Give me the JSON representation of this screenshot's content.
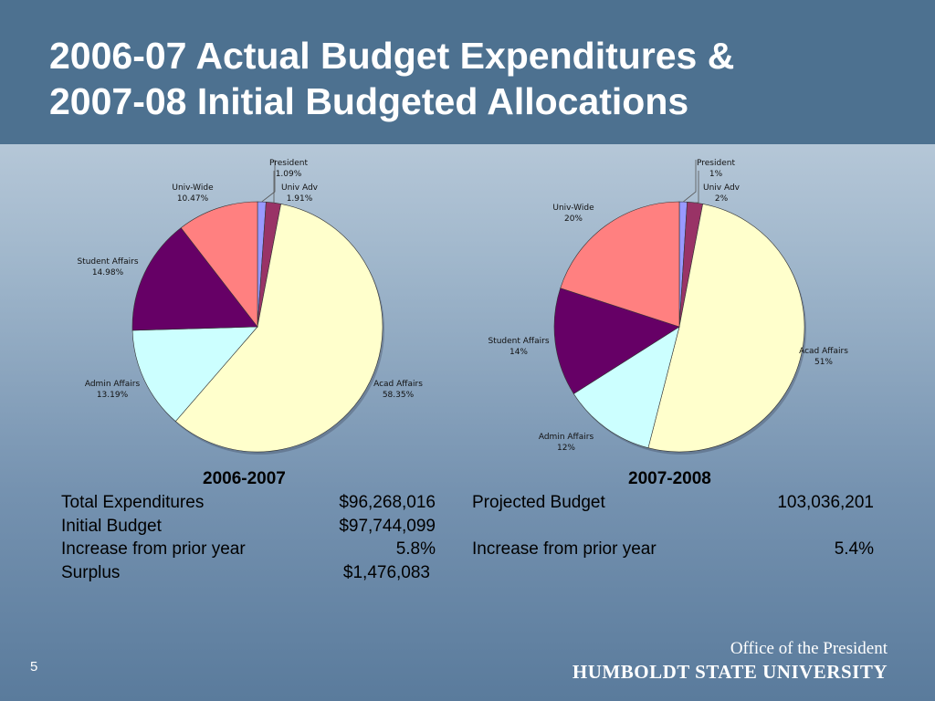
{
  "slide": {
    "title_line1": "2006-07 Actual Budget Expenditures &",
    "title_line2": "2007-08 Initial Budgeted Allocations",
    "page_number": "5",
    "logo_line1": "Office of the President",
    "logo_line2": "HUMBOLDT STATE UNIVERSITY"
  },
  "chart_data": [
    {
      "type": "pie",
      "title": "2006-2007",
      "start_angle_deg": 0,
      "slices": [
        {
          "label": "President",
          "value": 1.09,
          "display": "1.09%",
          "color": "#9999ff"
        },
        {
          "label": "Univ Adv",
          "value": 1.91,
          "display": "1.91%",
          "color": "#993366"
        },
        {
          "label": "Acad Affairs",
          "value": 58.35,
          "display": "58.35%",
          "color": "#ffffcc"
        },
        {
          "label": "Admin Affairs",
          "value": 13.19,
          "display": "13.19%",
          "color": "#ccffff"
        },
        {
          "label": "Student Affairs",
          "value": 14.98,
          "display": "14.98%",
          "color": "#660066"
        },
        {
          "label": "Univ-Wide",
          "value": 10.47,
          "display": "10.47%",
          "color": "#ff8080"
        }
      ]
    },
    {
      "type": "pie",
      "title": "2007-2008",
      "start_angle_deg": 0,
      "slices": [
        {
          "label": "President",
          "value": 1,
          "display": "1%",
          "color": "#9999ff"
        },
        {
          "label": "Univ Adv",
          "value": 2,
          "display": "2%",
          "color": "#993366"
        },
        {
          "label": "Acad Affairs",
          "value": 51,
          "display": "51%",
          "color": "#ffffcc"
        },
        {
          "label": "Admin Affairs",
          "value": 12,
          "display": "12%",
          "color": "#ccffff"
        },
        {
          "label": "Student Affairs",
          "value": 14,
          "display": "14%",
          "color": "#660066"
        },
        {
          "label": "Univ-Wide",
          "value": 20,
          "display": "20%",
          "color": "#ff8080"
        }
      ]
    }
  ],
  "table_2006": {
    "heading": "2006-2007",
    "rows": [
      {
        "label": "Total Expenditures",
        "value": "$96,268,016"
      },
      {
        "label": "Initial Budget",
        "value": "$97,744,099"
      },
      {
        "label": "Increase from prior year",
        "value": "5.8%"
      },
      {
        "label": "Surplus",
        "value": "$1,476,083"
      }
    ]
  },
  "table_2007": {
    "heading": "2007-2008",
    "rows": [
      {
        "label": "Projected Budget",
        "value": "103,036,201"
      },
      {
        "label": "",
        "value": ""
      },
      {
        "label": "Increase from prior year",
        "value": "5.4%"
      }
    ]
  }
}
